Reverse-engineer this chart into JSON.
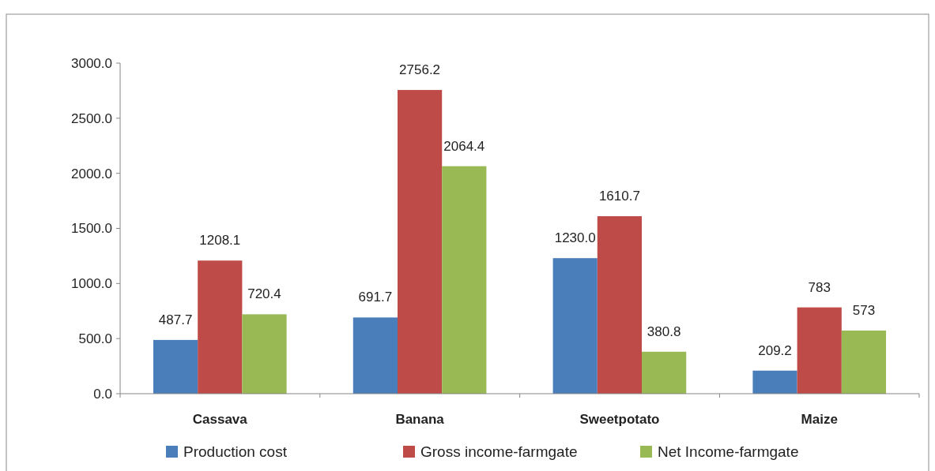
{
  "chart_data": {
    "type": "bar",
    "categories": [
      "Cassava",
      "Banana",
      "Sweetpotato",
      "Maize"
    ],
    "series": [
      {
        "name": "Production cost",
        "color": "#4a7ebb",
        "values": [
          487.7,
          691.7,
          1230.0,
          209.2
        ],
        "value_labels": [
          "487.7",
          "691.7",
          "1230.0",
          "209.2"
        ]
      },
      {
        "name": "Gross income-farmgate",
        "color": "#be4b48",
        "values": [
          1208.1,
          2756.2,
          1610.7,
          783
        ],
        "value_labels": [
          "1208.1",
          "2756.2",
          "1610.7",
          "783"
        ]
      },
      {
        "name": "Net Income-farmgate",
        "color": "#98b954",
        "values": [
          720.4,
          2064.4,
          380.8,
          573
        ],
        "value_labels": [
          "720.4",
          "2064.4",
          "380.8",
          "573"
        ]
      }
    ],
    "ylim": [
      0,
      3000
    ],
    "yticks": [
      {
        "value": 0,
        "label": "0.0"
      },
      {
        "value": 500,
        "label": "500.0"
      },
      {
        "value": 1000,
        "label": "1000.0"
      },
      {
        "value": 1500,
        "label": "1500.0"
      },
      {
        "value": 2000,
        "label": "2000.0"
      },
      {
        "value": 2500,
        "label": "2500.0"
      },
      {
        "value": 3000,
        "label": "3000.0"
      }
    ],
    "grid": false,
    "legend": "bottom"
  }
}
